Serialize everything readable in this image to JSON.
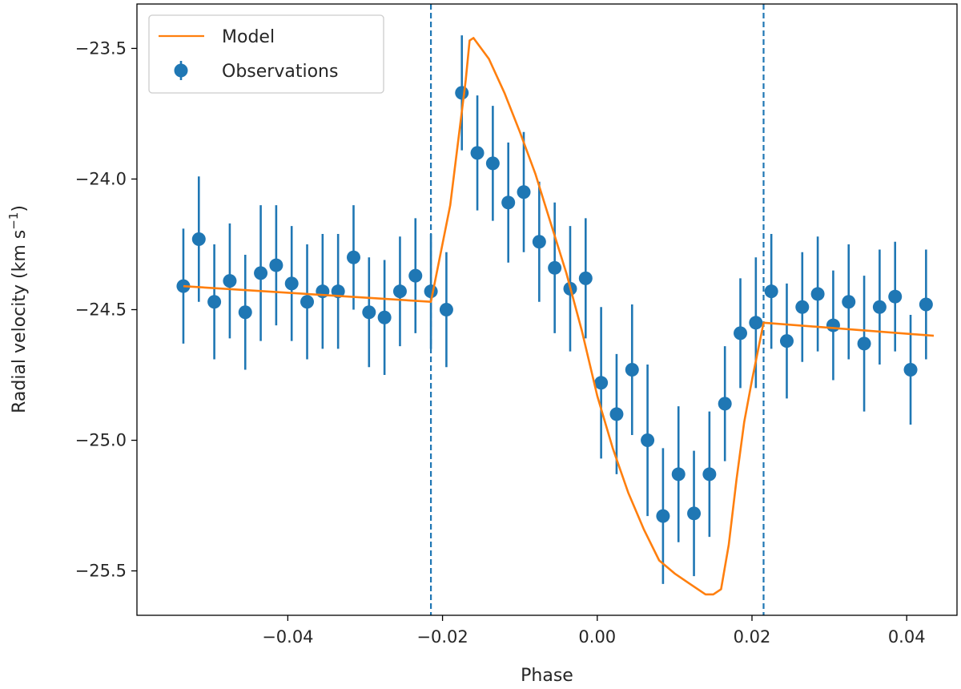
{
  "chart_data": {
    "type": "scatter",
    "title": "",
    "xlabel": "Phase",
    "ylabel": "Radial velocity (km s",
    "ylabel_sup": "−1",
    "ylabel_close": ")",
    "xlim": [
      -0.0595,
      0.0465
    ],
    "ylim": [
      -25.67,
      -23.33
    ],
    "grid": false,
    "legend_location": "top-left",
    "x_ticks": [
      -0.04,
      -0.02,
      0.0,
      0.02,
      0.04
    ],
    "x_tick_labels": [
      "−0.04",
      "−0.02",
      "0.00",
      "0.02",
      "0.04"
    ],
    "y_ticks": [
      -23.5,
      -24.0,
      -24.5,
      -25.0,
      -25.5
    ],
    "y_tick_labels": [
      "−23.5",
      "−24.0",
      "−24.5",
      "−25.0",
      "−25.5"
    ],
    "transit_markers": {
      "style": "dashed",
      "color": "#1f77b4",
      "x": [
        -0.0215,
        0.0215
      ]
    },
    "series": [
      {
        "name": "Model",
        "kind": "line",
        "color": "#ff7f0e",
        "x": [
          -0.0535,
          -0.0215,
          -0.019,
          -0.017,
          -0.0165,
          -0.016,
          -0.014,
          -0.012,
          -0.01,
          -0.008,
          -0.006,
          -0.004,
          -0.002,
          0.0,
          0.002,
          0.004,
          0.006,
          0.008,
          0.01,
          0.012,
          0.014,
          0.015,
          0.016,
          0.017,
          0.018,
          0.019,
          0.02,
          0.0215,
          0.0435
        ],
        "y": [
          -24.41,
          -24.47,
          -24.1,
          -23.62,
          -23.47,
          -23.46,
          -23.54,
          -23.67,
          -23.82,
          -23.98,
          -24.17,
          -24.36,
          -24.58,
          -24.83,
          -25.03,
          -25.2,
          -25.34,
          -25.46,
          -25.51,
          -25.55,
          -25.59,
          -25.59,
          -25.57,
          -25.4,
          -25.15,
          -24.93,
          -24.77,
          -24.55,
          -24.6
        ]
      },
      {
        "name": "Observations",
        "kind": "errorbar",
        "color": "#1f77b4",
        "x": [
          -0.0535,
          -0.0515,
          -0.0495,
          -0.0475,
          -0.0455,
          -0.0435,
          -0.0415,
          -0.0395,
          -0.0375,
          -0.0355,
          -0.0335,
          -0.0315,
          -0.0295,
          -0.0275,
          -0.0255,
          -0.0235,
          -0.0215,
          -0.0195,
          -0.0175,
          -0.0155,
          -0.0135,
          -0.0115,
          -0.0095,
          -0.0075,
          -0.0055,
          -0.0035,
          -0.0015,
          0.0005,
          0.0025,
          0.0045,
          0.0065,
          0.0085,
          0.0105,
          0.0125,
          0.0145,
          0.0165,
          0.0185,
          0.0205,
          0.0225,
          0.0245,
          0.0265,
          0.0285,
          0.0305,
          0.0325,
          0.0345,
          0.0365,
          0.0385,
          0.0405,
          0.0425
        ],
        "y": [
          -24.41,
          -24.23,
          -24.47,
          -24.39,
          -24.51,
          -24.36,
          -24.33,
          -24.4,
          -24.47,
          -24.43,
          -24.43,
          -24.3,
          -24.51,
          -24.53,
          -24.43,
          -24.37,
          -24.43,
          -24.5,
          -23.67,
          -23.9,
          -23.94,
          -24.09,
          -24.05,
          -24.24,
          -24.34,
          -24.42,
          -24.38,
          -24.78,
          -24.9,
          -24.73,
          -25.0,
          -25.29,
          -25.13,
          -25.28,
          -25.13,
          -24.86,
          -24.59,
          -24.55,
          -24.43,
          -24.62,
          -24.49,
          -24.44,
          -24.56,
          -24.47,
          -24.63,
          -24.49,
          -24.45,
          -24.73,
          -24.48
        ],
        "yerr": [
          0.22,
          0.24,
          0.22,
          0.22,
          0.22,
          0.26,
          0.23,
          0.22,
          0.22,
          0.22,
          0.22,
          0.2,
          0.21,
          0.22,
          0.21,
          0.22,
          0.22,
          0.22,
          0.22,
          0.22,
          0.22,
          0.23,
          0.23,
          0.23,
          0.25,
          0.24,
          0.23,
          0.29,
          0.23,
          0.25,
          0.29,
          0.26,
          0.26,
          0.24,
          0.24,
          0.22,
          0.21,
          0.25,
          0.22,
          0.22,
          0.21,
          0.22,
          0.21,
          0.22,
          0.26,
          0.22,
          0.21,
          0.21,
          0.21
        ]
      }
    ]
  }
}
